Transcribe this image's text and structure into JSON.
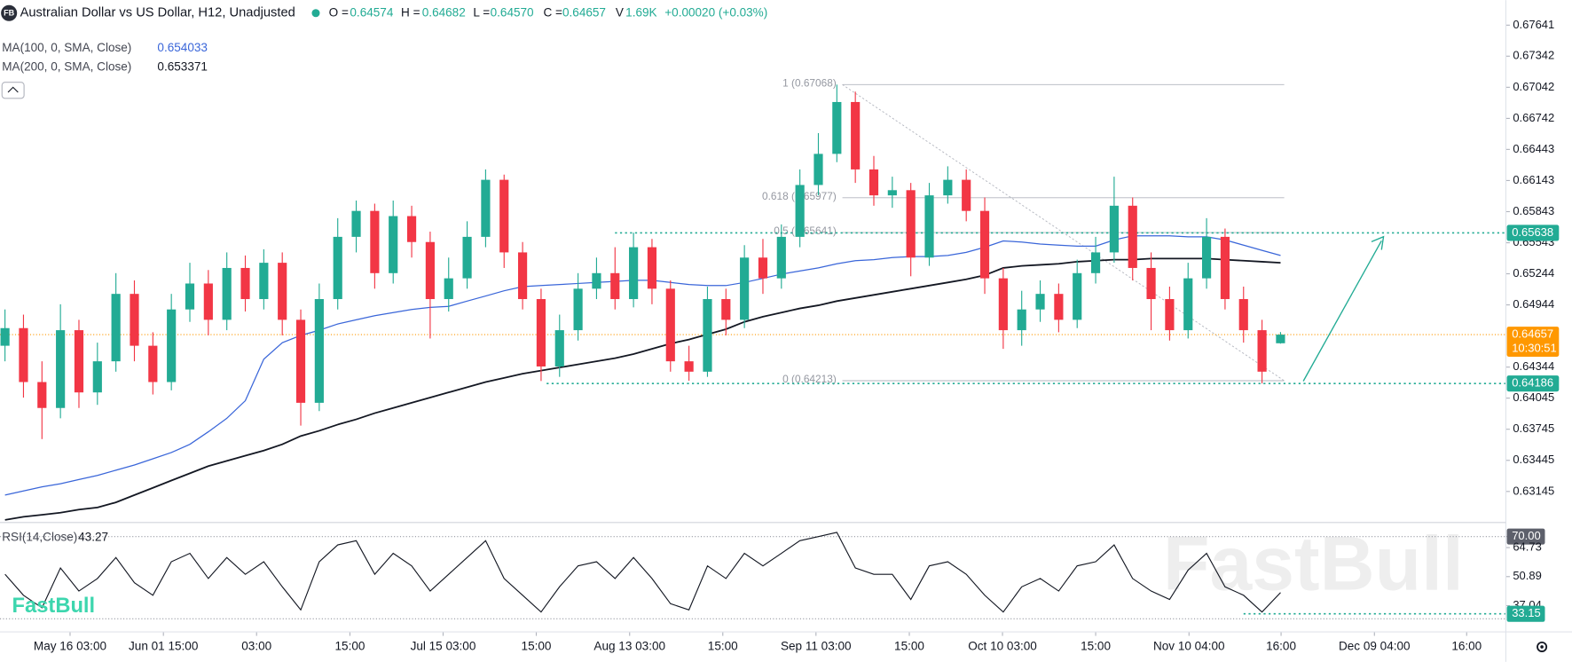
{
  "chart_data": {
    "type": "candlestick",
    "logo_badge": "FB",
    "title": "Australian Dollar vs US Dollar, H12, Unadjusted",
    "ohlc": [
      {
        "key": "O =",
        "value": "0.64574"
      },
      {
        "key": "H =",
        "value": "0.64682"
      },
      {
        "key": "L =",
        "value": "0.64570"
      },
      {
        "key": "C =",
        "value": "0.64657"
      },
      {
        "key": "V",
        "value": "1.69K"
      }
    ],
    "change": "+0.00020 (+0.03%)",
    "up_color": "#22ab94",
    "down_color": "#f23645",
    "candles": [
      [
        0.6455,
        0.649,
        0.644,
        0.6472
      ],
      [
        0.6472,
        0.6485,
        0.6405,
        0.642
      ],
      [
        0.642,
        0.644,
        0.6365,
        0.6395
      ],
      [
        0.6395,
        0.6495,
        0.6385,
        0.647
      ],
      [
        0.647,
        0.648,
        0.6395,
        0.641
      ],
      [
        0.641,
        0.6458,
        0.6398,
        0.644
      ],
      [
        0.644,
        0.6525,
        0.643,
        0.6505
      ],
      [
        0.6505,
        0.6518,
        0.644,
        0.6455
      ],
      [
        0.6455,
        0.6468,
        0.6408,
        0.642
      ],
      [
        0.642,
        0.6505,
        0.6412,
        0.649
      ],
      [
        0.649,
        0.6535,
        0.6478,
        0.6515
      ],
      [
        0.6515,
        0.6528,
        0.6465,
        0.648
      ],
      [
        0.648,
        0.6545,
        0.647,
        0.653
      ],
      [
        0.653,
        0.6542,
        0.6488,
        0.65
      ],
      [
        0.65,
        0.6548,
        0.649,
        0.6535
      ],
      [
        0.6535,
        0.6545,
        0.6465,
        0.648
      ],
      [
        0.648,
        0.649,
        0.6378,
        0.64
      ],
      [
        0.64,
        0.6515,
        0.6392,
        0.65
      ],
      [
        0.65,
        0.6578,
        0.649,
        0.656
      ],
      [
        0.656,
        0.6595,
        0.6545,
        0.6585
      ],
      [
        0.6585,
        0.6592,
        0.651,
        0.6525
      ],
      [
        0.6525,
        0.6595,
        0.6515,
        0.658
      ],
      [
        0.658,
        0.659,
        0.654,
        0.6555
      ],
      [
        0.6555,
        0.6565,
        0.6462,
        0.65
      ],
      [
        0.65,
        0.654,
        0.6488,
        0.652
      ],
      [
        0.652,
        0.6575,
        0.651,
        0.656
      ],
      [
        0.656,
        0.6625,
        0.655,
        0.6615
      ],
      [
        0.6615,
        0.662,
        0.653,
        0.6545
      ],
      [
        0.6545,
        0.6555,
        0.649,
        0.65
      ],
      [
        0.65,
        0.651,
        0.6421,
        0.6435
      ],
      [
        0.6435,
        0.6485,
        0.6425,
        0.647
      ],
      [
        0.647,
        0.6525,
        0.646,
        0.651
      ],
      [
        0.651,
        0.654,
        0.65,
        0.6525
      ],
      [
        0.6525,
        0.655,
        0.649,
        0.65
      ],
      [
        0.65,
        0.6564,
        0.6492,
        0.655
      ],
      [
        0.655,
        0.6558,
        0.6495,
        0.651
      ],
      [
        0.651,
        0.6518,
        0.643,
        0.644
      ],
      [
        0.644,
        0.6455,
        0.64213,
        0.643
      ],
      [
        0.643,
        0.6512,
        0.6425,
        0.65
      ],
      [
        0.65,
        0.651,
        0.6465,
        0.648
      ],
      [
        0.648,
        0.6552,
        0.6472,
        0.654
      ],
      [
        0.654,
        0.6558,
        0.6505,
        0.652
      ],
      [
        0.652,
        0.6572,
        0.651,
        0.656
      ],
      [
        0.656,
        0.6625,
        0.655,
        0.661
      ],
      [
        0.661,
        0.666,
        0.66,
        0.664
      ],
      [
        0.664,
        0.67068,
        0.6632,
        0.669
      ],
      [
        0.669,
        0.67,
        0.6612,
        0.6625
      ],
      [
        0.6625,
        0.6638,
        0.659,
        0.66
      ],
      [
        0.66,
        0.6618,
        0.6588,
        0.6605
      ],
      [
        0.6605,
        0.6612,
        0.6522,
        0.654
      ],
      [
        0.654,
        0.6612,
        0.6532,
        0.66
      ],
      [
        0.66,
        0.6628,
        0.6592,
        0.6615
      ],
      [
        0.6615,
        0.6625,
        0.6575,
        0.6585
      ],
      [
        0.6585,
        0.6598,
        0.6505,
        0.652
      ],
      [
        0.652,
        0.653,
        0.6452,
        0.647
      ],
      [
        0.647,
        0.6508,
        0.6455,
        0.649
      ],
      [
        0.649,
        0.6518,
        0.6478,
        0.6505
      ],
      [
        0.6505,
        0.6515,
        0.6468,
        0.648
      ],
      [
        0.648,
        0.6538,
        0.6472,
        0.6525
      ],
      [
        0.6525,
        0.656,
        0.6515,
        0.6545
      ],
      [
        0.6545,
        0.6618,
        0.6535,
        0.659
      ],
      [
        0.659,
        0.6598,
        0.6518,
        0.653
      ],
      [
        0.653,
        0.6545,
        0.647,
        0.65
      ],
      [
        0.65,
        0.6512,
        0.646,
        0.647
      ],
      [
        0.647,
        0.6535,
        0.6462,
        0.652
      ],
      [
        0.652,
        0.6578,
        0.651,
        0.656
      ],
      [
        0.656,
        0.6568,
        0.649,
        0.65
      ],
      [
        0.65,
        0.6512,
        0.6458,
        0.647
      ],
      [
        0.647,
        0.648,
        0.64186,
        0.643
      ],
      [
        0.64574,
        0.64682,
        0.6457,
        0.64657
      ]
    ],
    "series": [
      {
        "name": "MA(100, 0, SMA, Close)",
        "label": "0.654033",
        "color": "#3a66d9",
        "values": [
          0.6311,
          0.6315,
          0.6319,
          0.6322,
          0.6326,
          0.633,
          0.6335,
          0.634,
          0.6346,
          0.6352,
          0.636,
          0.6372,
          0.6385,
          0.6402,
          0.6442,
          0.6458,
          0.6465,
          0.647,
          0.6476,
          0.648,
          0.6484,
          0.6487,
          0.649,
          0.6492,
          0.6493,
          0.6498,
          0.6503,
          0.6508,
          0.6512,
          0.6513,
          0.6514,
          0.6515,
          0.6516,
          0.6517,
          0.6518,
          0.6518,
          0.6516,
          0.6514,
          0.6513,
          0.6513,
          0.6516,
          0.652,
          0.6524,
          0.6527,
          0.653,
          0.6534,
          0.6537,
          0.6538,
          0.654,
          0.6541,
          0.6541,
          0.6542,
          0.6545,
          0.655,
          0.6556,
          0.6555,
          0.6553,
          0.6552,
          0.6551,
          0.6551,
          0.6557,
          0.6561,
          0.6561,
          0.6561,
          0.656,
          0.656,
          0.6557,
          0.6552,
          0.6547,
          0.6542
        ]
      },
      {
        "name": "MA(200, 0, SMA, Close)",
        "label": "0.653371",
        "color": "#131722",
        "values": [
          0.6287,
          0.629,
          0.6292,
          0.6294,
          0.6297,
          0.6299,
          0.6304,
          0.6311,
          0.6318,
          0.6325,
          0.6332,
          0.6339,
          0.6344,
          0.6349,
          0.6354,
          0.636,
          0.6368,
          0.6373,
          0.6379,
          0.6384,
          0.639,
          0.6395,
          0.64,
          0.6405,
          0.641,
          0.6415,
          0.642,
          0.6424,
          0.6428,
          0.6431,
          0.6434,
          0.6437,
          0.644,
          0.6443,
          0.6447,
          0.6452,
          0.6457,
          0.6461,
          0.6466,
          0.6471,
          0.6478,
          0.6483,
          0.6487,
          0.6491,
          0.6494,
          0.6498,
          0.6501,
          0.6504,
          0.6507,
          0.651,
          0.6513,
          0.6516,
          0.6519,
          0.6523,
          0.653,
          0.6532,
          0.6533,
          0.6534,
          0.6536,
          0.6537,
          0.6538,
          0.6538,
          0.6539,
          0.6539,
          0.6539,
          0.6539,
          0.6538,
          0.6537,
          0.6536,
          0.6535
        ]
      }
    ],
    "xlim": [
      -0.27,
      81.08
    ],
    "xticks": [
      {
        "value": 3.52,
        "label": "May 16 03:00"
      },
      {
        "value": 8.57,
        "label": "Jun 01 15:00"
      },
      {
        "value": 13.61,
        "label": "03:00"
      },
      {
        "value": 18.66,
        "label": "15:00"
      },
      {
        "value": 23.7,
        "label": "Jul 15 03:00"
      },
      {
        "value": 28.74,
        "label": "15:00"
      },
      {
        "value": 33.79,
        "label": "Aug 13 03:00"
      },
      {
        "value": 38.83,
        "label": "15:00"
      },
      {
        "value": 43.87,
        "label": "Sep 11 03:00"
      },
      {
        "value": 48.92,
        "label": "15:00"
      },
      {
        "value": 53.96,
        "label": "Oct 10 03:00"
      },
      {
        "value": 59.0,
        "label": "15:00"
      },
      {
        "value": 64.05,
        "label": "Nov 10 04:00"
      },
      {
        "value": 69.03,
        "label": "16:00"
      },
      {
        "value": 74.08,
        "label": "Dec 09 04:00"
      },
      {
        "value": 79.07,
        "label": "16:00"
      }
    ],
    "ylim": [
      0.62855,
      0.67883
    ],
    "yticks": [
      0.67641,
      0.67342,
      0.67042,
      0.66742,
      0.66443,
      0.66143,
      0.65843,
      0.65543,
      0.65244,
      0.64944,
      0.64344,
      0.64045,
      0.63745,
      0.63445,
      0.63145
    ],
    "fib_x": [
      45.3,
      69.2
    ],
    "fib_levels": [
      {
        "value": 0.67068,
        "label": "1 (0.67068)"
      },
      {
        "value": 0.65977,
        "label": "0.618 (0.65977)"
      },
      {
        "value": 0.65641,
        "label": "0.5 (0.65641)"
      },
      {
        "value": 0.64213,
        "label": "0 (0.64213)"
      }
    ],
    "levels": [
      {
        "value": 0.65638,
        "label": "0.65638",
        "from": 33.0
      },
      {
        "value": 0.64186,
        "label": "0.64186",
        "from": 29.3
      }
    ],
    "level_color": "#22ab94",
    "last_price": {
      "value": 0.64657,
      "label": "0.64657",
      "countdown": "10:30:51",
      "color": "#ff9800"
    },
    "rsi": {
      "name": "RSI(14,Close)",
      "label": "43.27",
      "ylim": [
        25.5,
        76.2
      ],
      "yticks": [
        {
          "value": 70,
          "label": "70.00"
        },
        64.73,
        50.89,
        37.04
      ],
      "level": {
        "value": 33.15,
        "label": "33.15"
      },
      "values": [
        52,
        42,
        36,
        55,
        44,
        50,
        60,
        48,
        42,
        58,
        62,
        50,
        60,
        52,
        58,
        46,
        35,
        58,
        66,
        68,
        52,
        62,
        56,
        44,
        52,
        60,
        68,
        50,
        42,
        34,
        46,
        56,
        58,
        50,
        60,
        50,
        38,
        35,
        56,
        50,
        62,
        56,
        62,
        68,
        70,
        72,
        55,
        52,
        52,
        40,
        56,
        58,
        52,
        42,
        34,
        46,
        50,
        44,
        56,
        58,
        66,
        50,
        44,
        40,
        54,
        62,
        46,
        42,
        34,
        43.27
      ]
    },
    "watermark": "FastBull",
    "logo": "FastBull"
  }
}
